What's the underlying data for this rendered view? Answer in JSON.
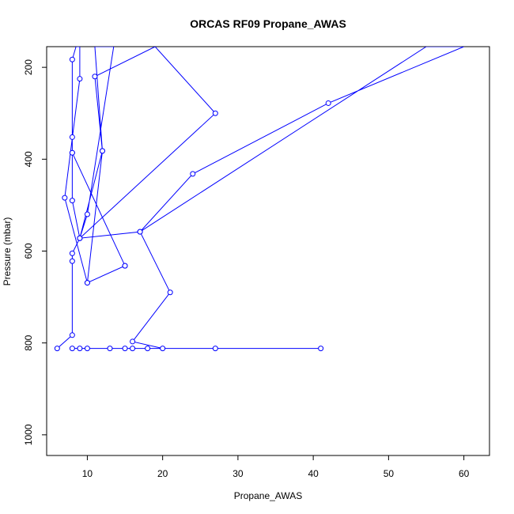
{
  "chart_data": {
    "type": "line",
    "title": "ORCAS RF09 Propane_AWAS",
    "xlabel": "Propane_AWAS",
    "ylabel": "Pressure (mbar)",
    "xlim": [
      4.6,
      63.4
    ],
    "ylim": [
      1045,
      155
    ],
    "y_reversed": true,
    "x_ticks": [
      10,
      20,
      30,
      40,
      50,
      60
    ],
    "y_ticks": [
      200,
      400,
      600,
      800,
      1000
    ],
    "grid": false,
    "legend": "none",
    "series_color": "#0000ff",
    "series": [
      {
        "points": [
          [
            6,
            812
          ],
          [
            8,
            783
          ],
          [
            8,
            622
          ],
          [
            8,
            605
          ],
          [
            9,
            572
          ],
          [
            10,
            520
          ],
          [
            13.5,
            155
          ],
          [
            11,
            155
          ],
          [
            12,
            382
          ],
          [
            10,
            669
          ],
          [
            15,
            632
          ],
          [
            8,
            386
          ],
          [
            8,
            352
          ],
          [
            8,
            183
          ],
          [
            8.5,
            155
          ],
          [
            9,
            155
          ],
          [
            9,
            225
          ],
          [
            7,
            484
          ],
          [
            10,
            669
          ],
          [
            15,
            632
          ],
          [
            8,
            386
          ],
          [
            8,
            490
          ],
          [
            9,
            572
          ],
          [
            27,
            300
          ],
          [
            19,
            155
          ],
          [
            11,
            220
          ],
          [
            12,
            382
          ],
          [
            9,
            572
          ],
          [
            17,
            558
          ],
          [
            24,
            432
          ],
          [
            42,
            278
          ],
          [
            60,
            155
          ],
          [
            55,
            155
          ],
          [
            17,
            558
          ],
          [
            21,
            690
          ],
          [
            16,
            797
          ],
          [
            20,
            812
          ],
          [
            41,
            812
          ],
          [
            27,
            812
          ],
          [
            16,
            812
          ],
          [
            18,
            812
          ],
          [
            13,
            812
          ],
          [
            15,
            812
          ],
          [
            10,
            812
          ],
          [
            9,
            812
          ],
          [
            8,
            812
          ]
        ]
      }
    ]
  }
}
